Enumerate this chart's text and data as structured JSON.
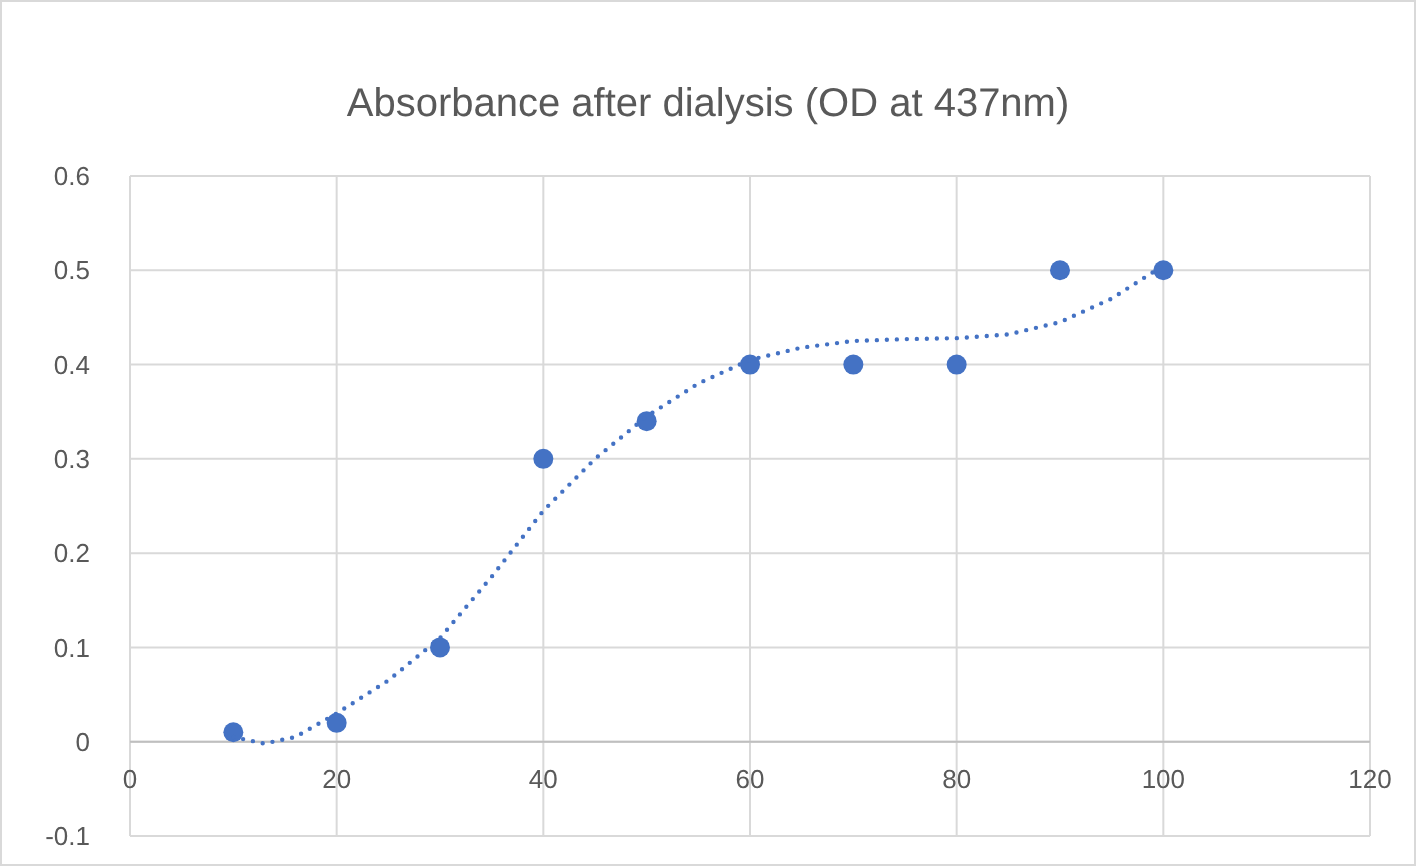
{
  "chart_data": {
    "type": "scatter",
    "title": "Absorbance after dialysis (OD at 437nm)",
    "series": [
      {
        "color": "#4472c4",
        "marker": "circle",
        "x": [
          10,
          20,
          30,
          40,
          50,
          60,
          70,
          80,
          90,
          100
        ],
        "values": [
          0.01,
          0.02,
          0.1,
          0.3,
          0.34,
          0.4,
          0.4,
          0.4,
          0.5,
          0.5
        ]
      },
      {
        "type": "line",
        "color": "#4472c4",
        "line_style": "dotted",
        "x": [
          10,
          13,
          16,
          20,
          25,
          30,
          35,
          40,
          45,
          50,
          55,
          60,
          65,
          70,
          75,
          80,
          85,
          90,
          95,
          100
        ],
        "values": [
          0.005,
          -0.002,
          0.005,
          0.03,
          0.065,
          0.11,
          0.175,
          0.245,
          0.3,
          0.345,
          0.38,
          0.405,
          0.418,
          0.425,
          0.427,
          0.428,
          0.432,
          0.445,
          0.47,
          0.505
        ]
      }
    ],
    "xlim": [
      0,
      120
    ],
    "xticks": [
      0,
      20,
      40,
      60,
      80,
      100,
      120
    ],
    "ylim": [
      -0.1,
      0.6
    ],
    "yticks": [
      -0.1,
      0,
      0.1,
      0.2,
      0.3,
      0.4,
      0.5,
      0.6
    ],
    "grid": true
  }
}
